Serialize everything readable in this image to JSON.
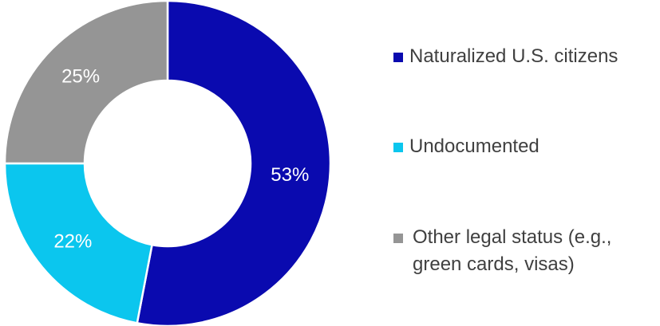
{
  "chart_data": {
    "type": "pie",
    "title": "",
    "donut": true,
    "categories": [
      "Naturalized U.S. citizens",
      "Undocumented",
      "Other legal status (e.g., green cards, visas)"
    ],
    "values": [
      53,
      22,
      25
    ],
    "data_labels": [
      "53%",
      "22%",
      "25%"
    ],
    "colors": [
      "#0A0AAF",
      "#0BC6EE",
      "#959595"
    ],
    "legend_position": "right",
    "legend": [
      {
        "lines": [
          "Naturalized U.S. citizens"
        ],
        "color": "#0A0AAF"
      },
      {
        "lines": [
          "Undocumented"
        ],
        "color": "#0BC6EE"
      },
      {
        "lines": [
          "Other legal status (e.g.,",
          "green cards, visas)"
        ],
        "color": "#959595"
      }
    ]
  }
}
